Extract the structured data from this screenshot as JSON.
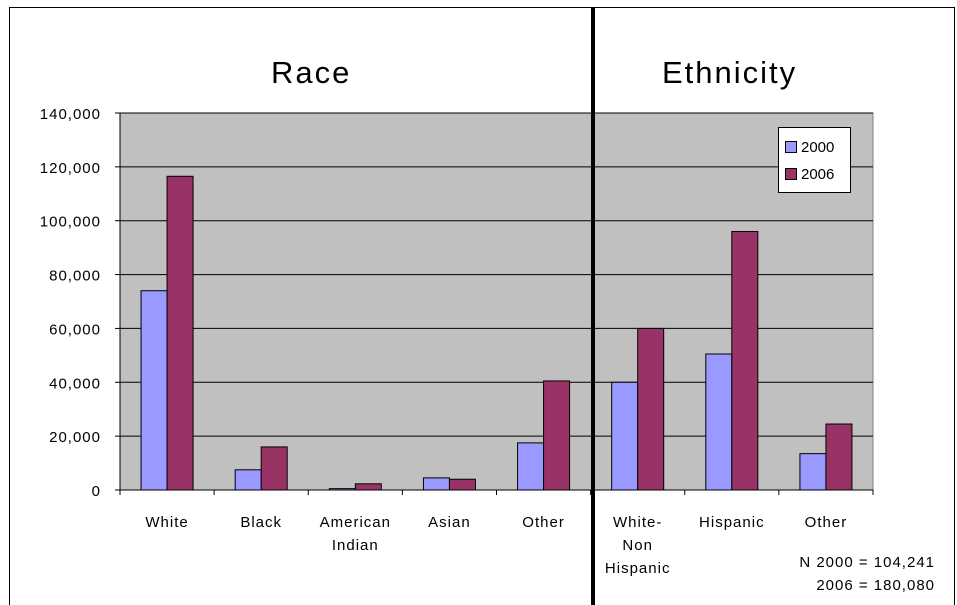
{
  "headings": {
    "race": "Race",
    "ethnicity": "Ethnicity"
  },
  "note": {
    "line1": "N 2000 = 104,241",
    "line2": "2006 = 180,080"
  },
  "colors": {
    "series_2000": "#9999ff",
    "series_2006": "#993366",
    "plot_bg": "#c0c0c0"
  },
  "chart_data": {
    "type": "bar",
    "title": "",
    "xlabel": "",
    "ylabel": "",
    "ylim": [
      0,
      140000
    ],
    "yticks": [
      "0",
      "20,000",
      "40,000",
      "60,000",
      "80,000",
      "100,000",
      "120,000",
      "140,000"
    ],
    "grid": true,
    "legend": "top-right",
    "categories": [
      [
        "White"
      ],
      [
        "Black"
      ],
      [
        "American",
        "Indian"
      ],
      [
        "Asian"
      ],
      [
        "Other"
      ],
      [
        "White-",
        "Non",
        "Hispanic"
      ],
      [
        "Hispanic"
      ],
      [
        "Other"
      ]
    ],
    "series": [
      {
        "name": "2000",
        "values": [
          74000,
          7500,
          500,
          4500,
          17500,
          40000,
          50500,
          13500
        ]
      },
      {
        "name": "2006",
        "values": [
          116500,
          16000,
          2300,
          4000,
          40500,
          60000,
          96000,
          24500
        ]
      }
    ]
  }
}
